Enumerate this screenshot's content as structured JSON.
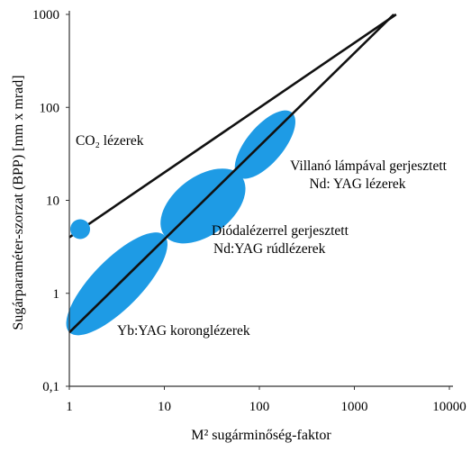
{
  "chart_data": {
    "type": "scatter",
    "xscale": "log",
    "yscale": "log",
    "xlim": [
      1,
      10000
    ],
    "ylim": [
      0.1,
      1000
    ],
    "grid": false,
    "xlabel": "M² sugárminőség-faktor",
    "ylabel": "Sugárparaméter-szorzat (BPP) [mm x mrad]",
    "x_ticks": [
      {
        "value": 1,
        "label": "1"
      },
      {
        "value": 10,
        "label": "10"
      },
      {
        "value": 100,
        "label": "100"
      },
      {
        "value": 1000,
        "label": "1000"
      },
      {
        "value": 10000,
        "label": "10000"
      }
    ],
    "y_ticks": [
      {
        "value": 0.1,
        "label": "0,1"
      },
      {
        "value": 1,
        "label": "1"
      },
      {
        "value": 10,
        "label": "10"
      },
      {
        "value": 100,
        "label": "100"
      },
      {
        "value": 1000,
        "label": "1000"
      }
    ],
    "lines": [
      {
        "x": [
          1,
          2750
        ],
        "y": [
          4,
          1000
        ]
      },
      {
        "x": [
          1,
          2600
        ],
        "y": [
          0.38,
          1000
        ]
      }
    ],
    "regions": [
      {
        "label": "Yb:YAG koronglézerek",
        "x_from": 1,
        "x_to": 10,
        "y_from": 0.38,
        "y_to": 4.2,
        "half_width": 0.18
      },
      {
        "label": "Diódalézerrel gerjesztett Nd:YAG rúdlézerek",
        "x_from": 10,
        "x_to": 65,
        "y_from": 4.2,
        "y_to": 18,
        "half_width": 0.3
      },
      {
        "label": "Villanó lámpával gerjesztett Nd: YAG lézerek",
        "x_from": 60,
        "x_to": 220,
        "y_from": 18,
        "y_to": 88,
        "half_width": 0.22
      }
    ],
    "points": [
      {
        "label": "CO₂ lézerek",
        "x": 1.3,
        "y": 4.9
      }
    ],
    "colors": {
      "region": "#1e9be5",
      "line": "#111111",
      "axis": "#333333"
    },
    "annotations": [
      {
        "lines": [
          "CO₂ lézerek"
        ]
      },
      {
        "lines": [
          "Villanó lámpával gerjesztett",
          "Nd: YAG lézerek"
        ]
      },
      {
        "lines": [
          "Diódalézerrel gerjesztett",
          "Nd:YAG rúdlézerek"
        ]
      },
      {
        "lines": [
          "Yb:YAG koronglézerek"
        ]
      }
    ]
  }
}
